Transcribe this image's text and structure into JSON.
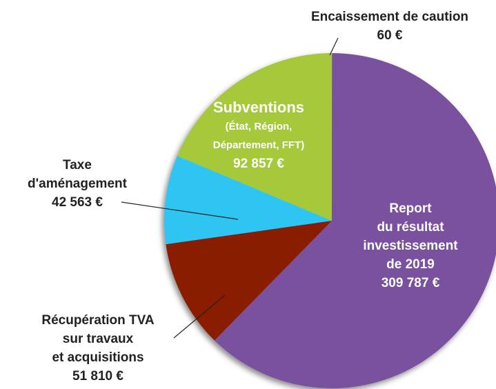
{
  "chart_data": {
    "type": "pie",
    "categories": [
      [
        "Encaissement de caution"
      ],
      [
        "Report",
        "du résultat",
        "investissement",
        "de 2019"
      ],
      [
        "Récupération TVA",
        "sur travaux",
        "et acquisitions"
      ],
      [
        "Taxe",
        "d'aménagement"
      ],
      [
        "Subventions",
        "(État, Région,",
        "Département, FFT)"
      ]
    ],
    "values": [
      60,
      309787,
      51810,
      42563,
      92857
    ],
    "value_labels": [
      "60 €",
      "309 787 €",
      "51 810 €",
      "42 563 €",
      "92 857 €"
    ],
    "colors": [
      "#f4f0f6",
      "#7a519e",
      "#8a1c02",
      "#2ec5f2",
      "#a5c93a"
    ]
  }
}
